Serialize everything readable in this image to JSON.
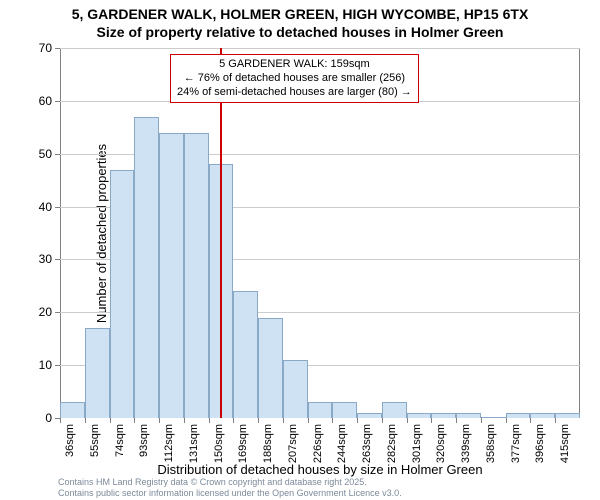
{
  "titles": {
    "line1": "5, GARDENER WALK, HOLMER GREEN, HIGH WYCOMBE, HP15 6TX",
    "line2": "Size of property relative to detached houses in Holmer Green"
  },
  "axis": {
    "y_label": "Number of detached properties",
    "x_label": "Distribution of detached houses by size in Holmer Green",
    "y_min": 0,
    "y_max": 70,
    "y_ticks": [
      0,
      10,
      20,
      30,
      40,
      50,
      60,
      70
    ],
    "x_tick_labels": [
      "36sqm",
      "55sqm",
      "74sqm",
      "93sqm",
      "112sqm",
      "131sqm",
      "150sqm",
      "169sqm",
      "188sqm",
      "207sqm",
      "226sqm",
      "244sqm",
      "263sqm",
      "282sqm",
      "301sqm",
      "320sqm",
      "339sqm",
      "358sqm",
      "377sqm",
      "396sqm",
      "415sqm"
    ]
  },
  "chart": {
    "type": "histogram",
    "bar_fill": "#cfe2f3",
    "bar_stroke": "#8aa9c7",
    "grid_color": "#cccccc",
    "background": "#ffffff",
    "values": [
      3,
      17,
      47,
      57,
      54,
      54,
      48,
      24,
      19,
      11,
      3,
      3,
      1,
      3,
      1,
      1,
      1,
      0,
      1,
      1,
      1
    ]
  },
  "reference": {
    "value_sqm": 159,
    "x_range_min": 36,
    "x_range_max": 434,
    "color": "#cc0000",
    "box_border": "#cc0000",
    "line1": "5 GARDENER WALK: 159sqm",
    "line2": "← 76% of detached houses are smaller (256)",
    "line3": "24% of semi-detached houses are larger (80) →"
  },
  "footer": {
    "line1": "Contains HM Land Registry data © Crown copyright and database right 2025.",
    "line2": "Contains public sector information licensed under the Open Government Licence v3.0.",
    "color": "#7c8a99"
  }
}
